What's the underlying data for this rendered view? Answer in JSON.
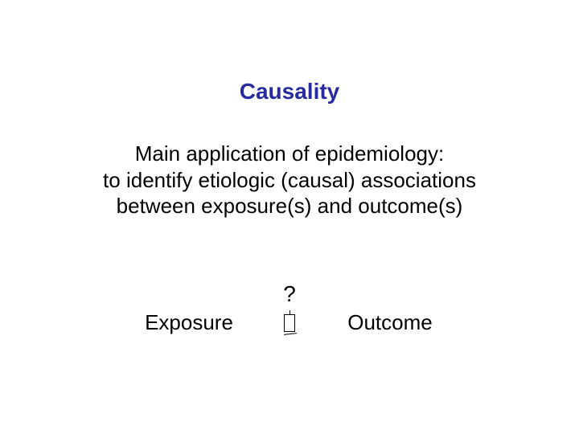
{
  "slide": {
    "title": "Causality",
    "title_color": "#2a2aa0",
    "title_fontsize": 28,
    "body_line1": "Main application of epidemiology:",
    "body_line2": "to identify etiologic (causal) associations",
    "body_line3": "between exposure(s) and outcome(s)",
    "body_color": "#000000",
    "body_fontsize": 26,
    "diagram": {
      "question": "?",
      "left_label": "Exposure",
      "right_label": "Outcome",
      "label_fontsize": 26,
      "label_color": "#000000",
      "question_fontsize": 28
    },
    "background_color": "#ffffff"
  }
}
